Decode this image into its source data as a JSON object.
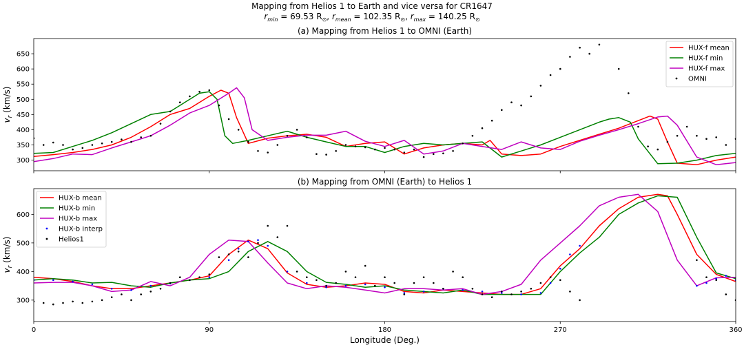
{
  "figure": {
    "suptitle_line1": "Mapping from Helios 1 to Earth and vice versa for CR1647",
    "suptitle_line2_parts": {
      "rmin_label": "r",
      "rmin_sub": "min",
      "rmin_text": " = 69.53  R",
      "rmean_label": "r",
      "rmean_sub": "mean",
      "rmean_text": " = 102.35  R",
      "rmax_label": "r",
      "rmax_sub": "max",
      "rmax_text": " = 140.25  R",
      "sun_symbol": "⊙",
      "sep": ", "
    },
    "xlabel": "Longitude (Deg.)"
  },
  "chart_data": [
    {
      "type": "line",
      "title": "(a) Mapping from Helios 1 to OMNI (Earth)",
      "ylabel": "v_r (km/s)",
      "ylabel_main": "v",
      "ylabel_sub": "r",
      "ylabel_unit": " (km/s)",
      "xlim": [
        0,
        360
      ],
      "ylim": [
        265,
        700
      ],
      "xticks": [
        0,
        90,
        180,
        270,
        360
      ],
      "yticks": [
        300,
        350,
        400,
        450,
        500,
        550,
        600,
        650
      ],
      "legend_position": "top-right",
      "series": [
        {
          "name": "HUX-f mean",
          "color": "#ff0000",
          "kind": "line",
          "x": [
            0,
            10,
            20,
            30,
            40,
            50,
            60,
            70,
            80,
            90,
            96,
            100,
            104,
            110,
            120,
            130,
            140,
            150,
            160,
            170,
            180,
            190,
            200,
            210,
            220,
            230,
            234,
            240,
            250,
            260,
            270,
            280,
            290,
            300,
            310,
            316,
            320,
            325,
            330,
            340,
            350,
            360
          ],
          "y": [
            312,
            318,
            325,
            335,
            350,
            375,
            410,
            450,
            470,
            510,
            530,
            520,
            440,
            355,
            372,
            380,
            385,
            375,
            345,
            355,
            360,
            320,
            340,
            350,
            355,
            350,
            365,
            320,
            315,
            320,
            345,
            365,
            385,
            405,
            430,
            445,
            435,
            360,
            290,
            285,
            300,
            310
          ]
        },
        {
          "name": "HUX-f min",
          "color": "#008000",
          "kind": "line",
          "x": [
            0,
            10,
            20,
            30,
            40,
            50,
            60,
            70,
            80,
            85,
            90,
            94,
            98,
            102,
            110,
            120,
            130,
            140,
            150,
            160,
            170,
            180,
            190,
            200,
            210,
            220,
            230,
            240,
            250,
            260,
            270,
            280,
            290,
            295,
            300,
            306,
            310,
            320,
            330,
            340,
            350,
            360
          ],
          "y": [
            322,
            325,
            345,
            365,
            390,
            420,
            450,
            460,
            500,
            520,
            525,
            500,
            380,
            355,
            365,
            380,
            395,
            375,
            360,
            345,
            345,
            325,
            345,
            355,
            350,
            355,
            360,
            310,
            330,
            350,
            375,
            400,
            425,
            435,
            440,
            425,
            370,
            288,
            290,
            300,
            315,
            322
          ]
        },
        {
          "name": "HUX-f max",
          "color": "#bf00bf",
          "kind": "line",
          "x": [
            0,
            10,
            20,
            30,
            40,
            50,
            60,
            70,
            80,
            90,
            100,
            104,
            108,
            112,
            120,
            130,
            140,
            150,
            160,
            170,
            180,
            190,
            200,
            210,
            220,
            230,
            240,
            250,
            260,
            270,
            280,
            290,
            300,
            310,
            320,
            325,
            330,
            340,
            350,
            360
          ],
          "y": [
            295,
            305,
            320,
            318,
            340,
            360,
            380,
            415,
            455,
            480,
            520,
            538,
            505,
            400,
            365,
            375,
            382,
            382,
            395,
            362,
            345,
            365,
            320,
            330,
            355,
            345,
            335,
            360,
            340,
            335,
            362,
            382,
            400,
            420,
            442,
            445,
            415,
            310,
            285,
            292
          ]
        },
        {
          "name": "OMNI",
          "color": "#000000",
          "kind": "scatter",
          "x": [
            0,
            5,
            10,
            15,
            20,
            25,
            30,
            35,
            40,
            45,
            50,
            55,
            60,
            65,
            70,
            75,
            80,
            85,
            90,
            95,
            100,
            105,
            110,
            115,
            120,
            125,
            130,
            135,
            140,
            145,
            150,
            155,
            160,
            165,
            170,
            175,
            180,
            185,
            190,
            195,
            200,
            205,
            210,
            215,
            220,
            225,
            230,
            235,
            240,
            245,
            250,
            255,
            260,
            265,
            270,
            275,
            280,
            285,
            290,
            300,
            305,
            310,
            315,
            320,
            325,
            330,
            335,
            340,
            345,
            350,
            355,
            360
          ],
          "y": [
            372,
            350,
            358,
            350,
            335,
            340,
            350,
            355,
            360,
            368,
            360,
            375,
            380,
            420,
            460,
            490,
            510,
            525,
            530,
            480,
            435,
            400,
            360,
            330,
            325,
            350,
            380,
            400,
            375,
            320,
            318,
            330,
            350,
            345,
            342,
            335,
            340,
            335,
            325,
            335,
            310,
            320,
            322,
            330,
            355,
            380,
            405,
            430,
            465,
            490,
            480,
            510,
            545,
            580,
            600,
            640,
            670,
            650,
            680,
            600,
            520,
            410,
            345,
            335,
            360,
            380,
            410,
            380,
            370,
            375,
            350,
            370
          ]
        }
      ]
    },
    {
      "type": "line",
      "title": "(b) Mapping from OMNI (Earth) to Helios 1",
      "ylabel": "v_r (km/s)",
      "ylabel_main": "v",
      "ylabel_sub": "r",
      "ylabel_unit": " (km/s)",
      "xlim": [
        0,
        360
      ],
      "ylim": [
        225,
        690
      ],
      "xticks": [
        0,
        90,
        180,
        270,
        360
      ],
      "xticklabels": [
        "0",
        "90",
        "180",
        "270",
        "360"
      ],
      "yticks": [
        300,
        400,
        500,
        600
      ],
      "legend_position": "top-left",
      "series": [
        {
          "name": "HUX-b mean",
          "color": "#ff0000",
          "kind": "line",
          "x": [
            0,
            10,
            20,
            30,
            40,
            50,
            60,
            70,
            80,
            90,
            100,
            110,
            120,
            130,
            140,
            150,
            160,
            170,
            180,
            190,
            200,
            210,
            220,
            230,
            240,
            250,
            260,
            270,
            280,
            290,
            300,
            310,
            320,
            325,
            330,
            340,
            350,
            360
          ],
          "y": [
            380,
            375,
            365,
            350,
            340,
            340,
            350,
            360,
            370,
            385,
            460,
            510,
            480,
            395,
            355,
            345,
            350,
            360,
            355,
            330,
            325,
            335,
            330,
            325,
            320,
            320,
            340,
            420,
            480,
            560,
            620,
            660,
            670,
            665,
            600,
            460,
            390,
            365
          ]
        },
        {
          "name": "HUX-b min",
          "color": "#008000",
          "kind": "line",
          "x": [
            0,
            10,
            20,
            30,
            40,
            50,
            60,
            70,
            80,
            90,
            100,
            110,
            120,
            130,
            140,
            150,
            160,
            170,
            180,
            190,
            200,
            210,
            220,
            230,
            240,
            250,
            260,
            270,
            280,
            290,
            300,
            310,
            320,
            330,
            340,
            350,
            360
          ],
          "y": [
            370,
            375,
            370,
            360,
            362,
            350,
            345,
            360,
            370,
            375,
            400,
            470,
            505,
            470,
            400,
            362,
            355,
            345,
            350,
            335,
            330,
            325,
            335,
            320,
            320,
            320,
            320,
            400,
            465,
            520,
            600,
            640,
            665,
            660,
            520,
            395,
            375
          ]
        },
        {
          "name": "HUX-b max",
          "color": "#bf00bf",
          "kind": "line",
          "x": [
            0,
            10,
            20,
            30,
            40,
            50,
            60,
            70,
            80,
            90,
            100,
            110,
            120,
            130,
            140,
            150,
            160,
            170,
            180,
            190,
            200,
            210,
            220,
            230,
            240,
            250,
            260,
            270,
            280,
            290,
            300,
            310,
            320,
            330,
            340,
            350,
            360
          ],
          "y": [
            360,
            362,
            362,
            350,
            330,
            335,
            365,
            350,
            380,
            460,
            510,
            505,
            430,
            360,
            340,
            350,
            345,
            335,
            325,
            340,
            340,
            335,
            340,
            320,
            330,
            355,
            440,
            500,
            560,
            630,
            660,
            670,
            610,
            440,
            350,
            378,
            380
          ]
        },
        {
          "name": "HUX-b interp",
          "color": "#0000ff",
          "kind": "scatter",
          "x": [
            0,
            10,
            20,
            30,
            40,
            50,
            60,
            70,
            80,
            90,
            100,
            105,
            110,
            115,
            120,
            130,
            140,
            150,
            160,
            170,
            180,
            190,
            200,
            210,
            220,
            230,
            240,
            250,
            260,
            265,
            270,
            275,
            280,
            340,
            345,
            350,
            355,
            360
          ],
          "y": [
            370,
            370,
            365,
            355,
            340,
            335,
            350,
            358,
            370,
            380,
            440,
            480,
            505,
            510,
            490,
            400,
            360,
            345,
            350,
            355,
            345,
            325,
            330,
            340,
            335,
            330,
            325,
            320,
            325,
            360,
            410,
            460,
            490,
            350,
            360,
            375,
            385,
            370
          ]
        },
        {
          "name": "Helios1",
          "color": "#000000",
          "kind": "scatter",
          "x": [
            0,
            5,
            10,
            15,
            20,
            25,
            30,
            35,
            40,
            45,
            50,
            55,
            60,
            65,
            70,
            75,
            80,
            85,
            90,
            95,
            100,
            105,
            110,
            115,
            120,
            125,
            130,
            135,
            140,
            145,
            150,
            155,
            160,
            165,
            170,
            175,
            180,
            185,
            190,
            195,
            200,
            205,
            210,
            215,
            220,
            225,
            230,
            235,
            240,
            245,
            250,
            255,
            260,
            265,
            270,
            275,
            280,
            340,
            345,
            350,
            355,
            360
          ],
          "y": [
            295,
            290,
            285,
            290,
            295,
            290,
            295,
            300,
            310,
            320,
            300,
            320,
            330,
            340,
            360,
            380,
            370,
            380,
            390,
            450,
            460,
            470,
            450,
            500,
            560,
            520,
            560,
            400,
            380,
            370,
            350,
            360,
            400,
            380,
            420,
            350,
            380,
            360,
            320,
            360,
            380,
            360,
            340,
            400,
            380,
            340,
            320,
            310,
            330,
            320,
            330,
            340,
            360,
            380,
            370,
            330,
            300,
            440,
            380,
            370,
            320,
            300
          ]
        }
      ]
    }
  ]
}
